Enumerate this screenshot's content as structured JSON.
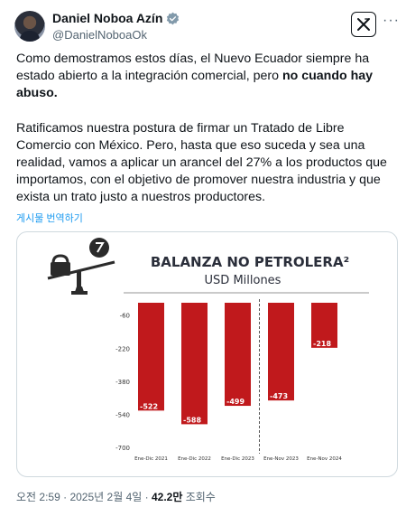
{
  "author": {
    "display_name": "Daniel Noboa Azín",
    "handle": "@DanielNoboaOk"
  },
  "tweet": {
    "p1_text": "Como demostramos estos días, el Nuevo Ecuador siempre ha estado abierto a la integración comercial, pero ",
    "p1_bold": "no cuando hay abuso.",
    "p2_text": "Ratificamos nuestra postura de firmar un Tratado de Libre Comercio con México. Pero, hasta que eso suceda y sea una realidad, vamos a aplicar un arancel del 27% a los productos que importamos, con el objetivo de promover nuestra industria y que exista un trato justo a nuestros productores.",
    "translate_label": "게시물 번역하기"
  },
  "meta": {
    "time": "오전 2:59",
    "sep1": " · ",
    "date": "2025년 2월 4일",
    "sep2": " · ",
    "views": "42.2만",
    "views_label": " 조회수"
  },
  "colors": {
    "bar": "#c0191c",
    "accent_link": "#1d9bf0",
    "text_secondary": "#536471",
    "verified": "#829aab"
  },
  "icons": [
    "verified-badge-icon",
    "x-logo-icon",
    "more-icon",
    "balance-scale-icon"
  ],
  "chart_data": {
    "type": "bar",
    "title": "BALANZA NO PETROLERA²",
    "subtitle": "USD Millones",
    "categories": [
      "Ene-Dic 2021",
      "Ene-Dic 2022",
      "Ene-Dic 2023",
      "Ene-Nov 2023",
      "Ene-Nov 2024"
    ],
    "values": [
      -522,
      -588,
      -499,
      -473,
      -218
    ],
    "data_labels": [
      "-522",
      "-588",
      "-499",
      "-473",
      "-218"
    ],
    "ytick_labels": [
      "-60",
      "-220",
      "-380",
      "-540",
      "-700"
    ],
    "yticks": [
      -60,
      -220,
      -380,
      -540,
      -700
    ],
    "ylim": [
      -700,
      0
    ],
    "grid": false,
    "divider_after_index": 2,
    "xlabel": "",
    "ylabel": ""
  }
}
